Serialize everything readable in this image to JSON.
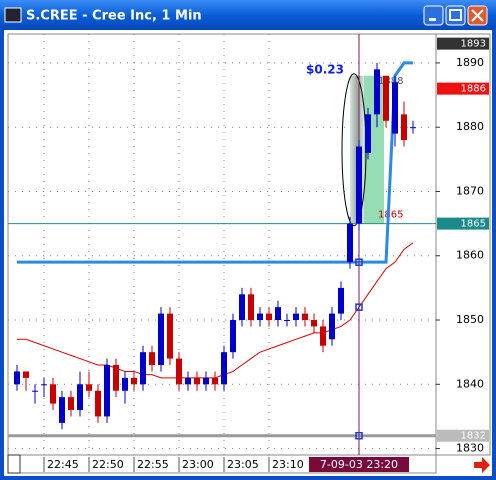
{
  "chart_data": {
    "type": "candlestick",
    "title": "S.CREE - Cree Inc, 1 Min",
    "categories": [
      null,
      null,
      null,
      "22:45",
      null,
      null,
      null,
      null,
      "22:50",
      null,
      null,
      null,
      null,
      "22:55",
      null,
      null,
      null,
      null,
      "23:00",
      null,
      null,
      null,
      null,
      "23:05",
      null,
      null,
      null,
      null,
      "23:10",
      null,
      null,
      null,
      null,
      null,
      null,
      null,
      null,
      null,
      "7-09-03 23:20",
      null,
      null,
      null,
      null,
      null,
      null
    ],
    "open": [
      1840,
      1842,
      1839,
      1840,
      1840,
      1834,
      1838,
      1836,
      1840,
      1839,
      1835,
      1843,
      1839,
      1841,
      1840,
      1845,
      1843,
      1851,
      1844,
      1840,
      1841,
      1840,
      1841,
      1840,
      1845,
      1850,
      1854,
      1850,
      1851,
      1850,
      1850,
      1850,
      1851,
      1850,
      1849,
      1847,
      1851,
      1859,
      1865,
      1876,
      1882,
      1888,
      1879,
      1882,
      1880
    ],
    "high": [
      1843,
      1842,
      1840,
      1841,
      1841,
      1839,
      1839,
      1842,
      1842,
      1840,
      1844,
      1844,
      1842,
      1842,
      1846,
      1846,
      1852,
      1852,
      1845,
      1842,
      1842,
      1842,
      1842,
      1846,
      1851,
      1855,
      1855,
      1852,
      1852,
      1853,
      1851,
      1852,
      1852,
      1851,
      1850,
      1852,
      1856,
      1866,
      1878,
      1883,
      1890,
      1888,
      1888,
      1884,
      1881
    ],
    "low": [
      1839,
      1839,
      1837,
      1838,
      1836,
      1833,
      1835,
      1835,
      1838,
      1834,
      1834,
      1838,
      1837,
      1839,
      1839,
      1842,
      1842,
      1843,
      1839,
      1839,
      1839,
      1839,
      1839,
      1839,
      1844,
      1849,
      1849,
      1849,
      1849,
      1849,
      1849,
      1849,
      1849,
      1848,
      1845,
      1846,
      1850,
      1858,
      1864,
      1875,
      1880,
      1880,
      1877,
      1877,
      1879
    ],
    "close": [
      1842,
      1841,
      1839,
      1840,
      1837,
      1838,
      1836,
      1840,
      1839,
      1835,
      1843,
      1839,
      1841,
      1840,
      1845,
      1843,
      1851,
      1844,
      1840,
      1841,
      1840,
      1841,
      1840,
      1845,
      1850,
      1854,
      1850,
      1851,
      1850,
      1852,
      1850,
      1851,
      1850,
      1849,
      1846,
      1851,
      1855,
      1865,
      1877,
      1882,
      1889,
      1881,
      1887,
      1878,
      1880
    ],
    "up_color": "#0000cc",
    "down_color": "#cc0000",
    "series": [
      {
        "color": "#dd0000",
        "values": [
          1847,
          1847,
          1846.5,
          1846,
          1845.5,
          1845,
          1844.5,
          1844,
          1843.5,
          1843,
          1843,
          1842.5,
          1842,
          1842,
          1841.5,
          1841.5,
          1841,
          1841,
          1841,
          1841,
          1841,
          1841,
          1841,
          1841.5,
          1842,
          1843,
          1844,
          1845,
          1845.5,
          1846,
          1846.5,
          1847,
          1847.5,
          1848,
          1848,
          1848.5,
          1849,
          1850,
          1852,
          1854,
          1856,
          1858,
          1859,
          1861,
          1862
        ]
      },
      {
        "color": "#2a8ae8",
        "values": [
          1859,
          1859,
          1859,
          1859,
          1859,
          1859,
          1859,
          1859,
          1859,
          1859,
          1859,
          1859,
          1859,
          1859,
          1859,
          1859,
          1859,
          1859,
          1859,
          1859,
          1859,
          1859,
          1859,
          1859,
          1859,
          1859,
          1859,
          1859,
          1859,
          1859,
          1859,
          1859,
          1859,
          1859,
          1859,
          1859,
          1859,
          1859,
          1859,
          1859,
          1859,
          1859,
          1888,
          1890,
          1890
        ]
      }
    ],
    "ylim": [
      1829,
      1894.5
    ],
    "yticks": [
      1830,
      1840,
      1850,
      1860,
      1870,
      1880,
      1890
    ],
    "grid": true,
    "cursor": true,
    "hlines": [
      {
        "value": 1865,
        "color": "#2a8c8c"
      },
      {
        "value": 1832,
        "color": "#999999"
      }
    ],
    "axis_flags": [
      {
        "value": 1893,
        "color": "#333333"
      },
      {
        "value": 1886,
        "color": "#ee1111"
      },
      {
        "value": 1865,
        "color": "#1a8a8a"
      },
      {
        "value": 1832,
        "color": "#bbbbbb"
      }
    ],
    "box": {
      "label": "$0.23",
      "high": 1888,
      "low": 1865,
      "color": "#96dcb4"
    }
  }
}
